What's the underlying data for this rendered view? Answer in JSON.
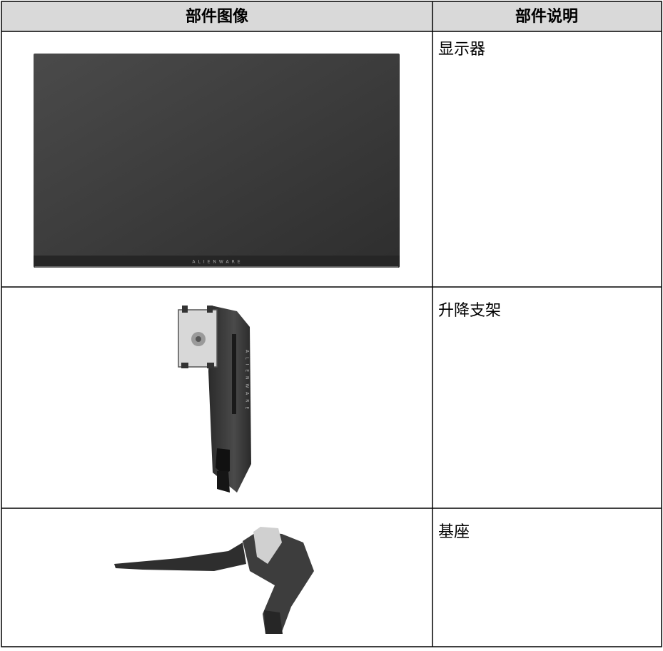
{
  "table": {
    "header": [
      "部件图像",
      "部件说明"
    ],
    "rows": [
      {
        "description": "显示器",
        "image_text": "ALIENWARE"
      },
      {
        "description": "升降支架",
        "image_text": "ALIENWARE"
      },
      {
        "description": "基座"
      }
    ]
  }
}
